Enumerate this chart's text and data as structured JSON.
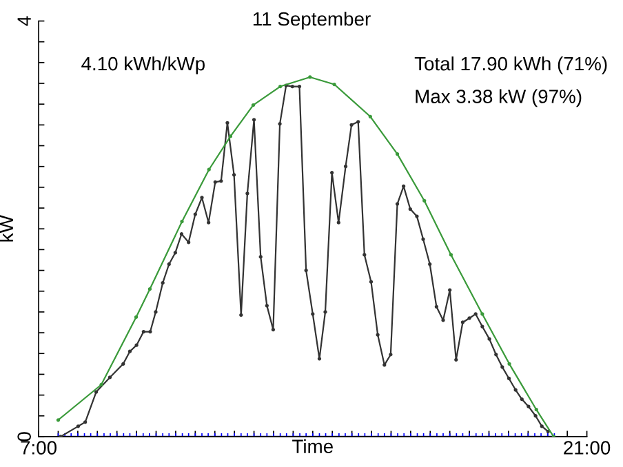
{
  "chart_data": {
    "type": "line",
    "title": "11 September",
    "xlabel": "Time",
    "ylabel": "kW",
    "annotations": [
      "4.10 kWh/kWp",
      "Total 17.90 kWh (71%)",
      "Max 3.38 kW (97%)"
    ],
    "xlim": [
      7,
      21
    ],
    "ylim": [
      0,
      4
    ],
    "xticks": [
      {
        "value": 7,
        "label": "7:00"
      },
      {
        "value": 7.5,
        "label": null
      },
      {
        "value": 8,
        "label": null
      },
      {
        "value": 8.5,
        "label": null
      },
      {
        "value": 9,
        "label": null
      },
      {
        "value": 9.5,
        "label": null
      },
      {
        "value": 10,
        "label": null
      },
      {
        "value": 10.5,
        "label": null
      },
      {
        "value": 11,
        "label": null
      },
      {
        "value": 11.5,
        "label": null
      },
      {
        "value": 12,
        "label": null
      },
      {
        "value": 12.5,
        "label": null
      },
      {
        "value": 13,
        "label": null
      },
      {
        "value": 13.5,
        "label": null
      },
      {
        "value": 14,
        "label": null
      },
      {
        "value": 14.5,
        "label": null
      },
      {
        "value": 15,
        "label": null
      },
      {
        "value": 15.5,
        "label": null
      },
      {
        "value": 16,
        "label": null
      },
      {
        "value": 16.5,
        "label": null
      },
      {
        "value": 17,
        "label": null
      },
      {
        "value": 17.5,
        "label": null
      },
      {
        "value": 18,
        "label": null
      },
      {
        "value": 18.5,
        "label": null
      },
      {
        "value": 19,
        "label": null
      },
      {
        "value": 19.5,
        "label": null
      },
      {
        "value": 20,
        "label": null
      },
      {
        "value": 20.5,
        "label": null
      },
      {
        "value": 21,
        "label": "21:00"
      }
    ],
    "yticks": [
      0,
      {
        "value": 0.2,
        "label": null
      },
      {
        "value": 0.4,
        "label": null
      },
      {
        "value": 0.6,
        "label": null
      },
      {
        "value": 0.8,
        "label": null
      },
      {
        "value": 1,
        "label": null
      },
      {
        "value": 1.2,
        "label": null
      },
      {
        "value": 1.4,
        "label": null
      },
      {
        "value": 1.6,
        "label": null
      },
      {
        "value": 1.8,
        "label": null
      },
      {
        "value": 2,
        "label": null
      },
      {
        "value": 2.2,
        "label": null
      },
      {
        "value": 2.4,
        "label": null
      },
      {
        "value": 2.6,
        "label": null
      },
      {
        "value": 2.8,
        "label": null
      },
      {
        "value": 3,
        "label": null
      },
      {
        "value": 3.2,
        "label": null
      },
      {
        "value": 3.4,
        "label": null
      },
      {
        "value": 3.6,
        "label": null
      },
      {
        "value": 3.8,
        "label": null
      },
      4
    ],
    "grid": false,
    "legend": false,
    "series": [
      {
        "color": "#3a9a3a",
        "marker": "circle",
        "x": [
          7.5,
          8.6,
          9.49,
          9.84,
          10.66,
          11.35,
          11.9,
          12.48,
          13.17,
          13.93,
          14.55,
          15.47,
          16.16,
          16.85,
          17.53,
          18.33,
          19.02,
          19.71,
          20.15
        ],
        "values": [
          0.16,
          0.5,
          1.15,
          1.42,
          2.07,
          2.57,
          2.89,
          3.19,
          3.37,
          3.46,
          3.39,
          3.08,
          2.72,
          2.27,
          1.75,
          1.18,
          0.7,
          0.26,
          0
        ]
      },
      {
        "color": "#333333",
        "marker": "circle",
        "x": [
          7.56,
          8.01,
          8.19,
          8.47,
          8.82,
          9.16,
          9.33,
          9.5,
          9.68,
          9.85,
          9.99,
          10.17,
          10.33,
          10.49,
          10.65,
          10.83,
          11.0,
          11.17,
          11.34,
          11.51,
          11.66,
          11.82,
          11.99,
          12.17,
          12.33,
          12.5,
          12.67,
          12.83,
          12.99,
          13.16,
          13.32,
          13.48,
          13.66,
          13.83,
          14.0,
          14.17,
          14.32,
          14.49,
          14.66,
          14.84,
          14.99,
          15.16,
          15.32,
          15.49,
          15.66,
          15.83,
          15.99,
          16.16,
          16.32,
          16.49,
          16.66,
          16.82,
          16.99,
          17.16,
          17.33,
          17.5,
          17.66,
          17.83,
          18.0,
          18.16,
          18.33,
          18.51,
          18.68,
          18.84,
          19.01,
          19.18,
          19.34,
          19.51,
          19.69,
          19.85,
          20.01
        ],
        "values": [
          0,
          0.1,
          0.14,
          0.43,
          0.57,
          0.7,
          0.82,
          0.88,
          1.01,
          1.01,
          1.2,
          1.48,
          1.66,
          1.77,
          1.95,
          1.87,
          2.14,
          2.3,
          2.06,
          2.45,
          2.46,
          3.02,
          2.52,
          1.17,
          2.34,
          3.05,
          1.73,
          1.26,
          1.03,
          3.01,
          3.38,
          3.37,
          3.37,
          1.6,
          1.18,
          0.75,
          1.2,
          2.54,
          2.06,
          2.6,
          3.0,
          3.03,
          1.75,
          1.49,
          0.98,
          0.69,
          0.79,
          2.24,
          2.41,
          2.19,
          2.12,
          1.9,
          1.66,
          1.25,
          1.12,
          1.41,
          0.74,
          1.1,
          1.14,
          1.18,
          1.06,
          0.94,
          0.79,
          0.67,
          0.56,
          0.45,
          0.36,
          0.29,
          0.2,
          0.1,
          0.05
        ]
      },
      {
        "color": "#0000ff",
        "marker": "cross",
        "x": [
          7.5,
          7.67,
          7.83,
          8,
          8.17,
          8.33,
          8.5,
          8.67,
          8.83,
          9,
          9.17,
          9.33,
          9.5,
          9.67,
          9.83,
          10,
          10.17,
          10.33,
          10.5,
          10.67,
          10.83,
          11,
          11.17,
          11.33,
          11.5,
          11.67,
          11.83,
          12,
          12.17,
          12.33,
          12.5,
          12.67,
          12.83,
          13,
          13.17,
          13.33,
          13.5,
          13.67,
          13.83,
          14,
          14.17,
          14.33,
          14.5,
          14.67,
          14.83,
          15,
          15.17,
          15.33,
          15.5,
          15.67,
          15.83,
          16,
          16.17,
          16.33,
          16.5,
          16.67,
          16.83,
          17,
          17.17,
          17.33,
          17.5,
          17.67,
          17.83,
          18,
          18.17,
          18.33,
          18.5,
          18.67,
          18.83,
          19,
          19.17,
          19.33,
          19.5,
          19.67,
          19.83,
          20,
          20.17
        ],
        "values": [
          0,
          0,
          0,
          0,
          0,
          0,
          0,
          0,
          0,
          0,
          0,
          0,
          0,
          0,
          0,
          0,
          0,
          0,
          0,
          0,
          0,
          0,
          0,
          0,
          0,
          0,
          0,
          0,
          0,
          0,
          0,
          0,
          0,
          0,
          0,
          0,
          0,
          0,
          0,
          0,
          0,
          0,
          0,
          0,
          0,
          0,
          0,
          0,
          0,
          0,
          0,
          0,
          0,
          0,
          0,
          0,
          0,
          0,
          0,
          0,
          0,
          0,
          0,
          0,
          0,
          0,
          0,
          0,
          0,
          0,
          0,
          0,
          0,
          0,
          0,
          0,
          0
        ]
      }
    ]
  }
}
